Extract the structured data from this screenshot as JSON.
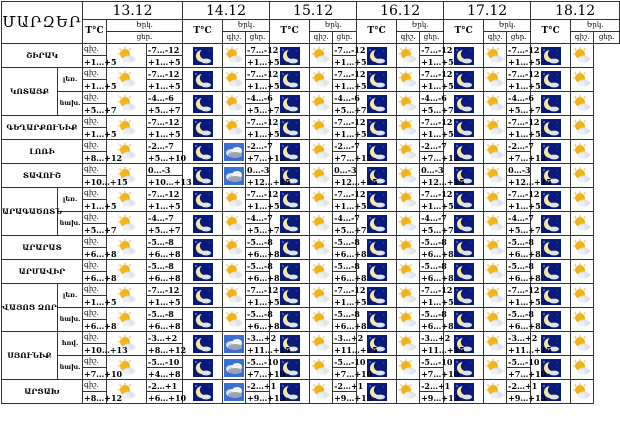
{
  "header": {
    "title": "ՄԱՐԶԵՐ",
    "temp_label": "T°C",
    "sky_label_top": "Երկ.",
    "sky_label_bot": "ցեր.",
    "night_label": "գիշ.",
    "day_label": "ցեր.",
    "dates": [
      "13.12",
      "14.12",
      "15.12",
      "16.12",
      "17.12",
      "18.12"
    ]
  },
  "rows": [
    {
      "region": "ՇԻՐԱԿ",
      "sub": "",
      "first_row": true,
      "span": 1,
      "temps": [
        [
          "",
          "+1…+5"
        ],
        [
          "-7…-12",
          "+1…+5"
        ],
        [
          "-7…-12",
          "+1…+5"
        ],
        [
          "-7…-12",
          "+1…+5"
        ],
        [
          "-7…-12",
          "+1…+5"
        ],
        [
          "-7…-12",
          "+1…+5"
        ]
      ],
      "icons": [
        [
          "",
          "partly-cloudy-icon"
        ],
        [
          "moon-icon",
          "partly-cloudy-icon"
        ],
        [
          "moon-icon",
          "partly-cloudy-icon"
        ],
        [
          "moon-icon",
          "partly-cloudy-icon"
        ],
        [
          "moon-icon",
          "partly-cloudy-icon"
        ],
        [
          "moon-icon",
          "partly-cloudy-icon"
        ]
      ]
    },
    {
      "region": "ԿՈՏԱՅՔ",
      "sub": "լեռ.",
      "first_row": true,
      "span": 2,
      "temps": [
        [
          "",
          "+1…+5"
        ],
        [
          "-7…-12",
          "+1…+5"
        ],
        [
          "-7…-12",
          "+1…+5"
        ],
        [
          "-7…-12",
          "+1…+5"
        ],
        [
          "-7…-12",
          "+1…+5"
        ],
        [
          "-7…-12",
          "+1…+5"
        ]
      ],
      "icons": [
        [
          "",
          "partly-cloudy-icon"
        ],
        [
          "moon-icon",
          "partly-cloudy-icon"
        ],
        [
          "moon-icon",
          "partly-cloudy-icon"
        ],
        [
          "moon-icon",
          "partly-cloudy-icon"
        ],
        [
          "moon-icon",
          "partly-cloudy-icon"
        ],
        [
          "moon-icon",
          "partly-cloudy-icon"
        ]
      ]
    },
    {
      "region": "",
      "sub": "նախ.",
      "first_row": false,
      "span": 0,
      "temps": [
        [
          "",
          "+5…+7"
        ],
        [
          "-4…-6",
          "+5…+7"
        ],
        [
          "-4…-6",
          "+5…+7"
        ],
        [
          "-4…-6",
          "+5…+7"
        ],
        [
          "-4…-6",
          "+5…+7"
        ],
        [
          "-4…-6",
          "+5…+7"
        ]
      ],
      "icons": [
        [
          "",
          "partly-cloudy-icon"
        ],
        [
          "moon-icon",
          "partly-cloudy-icon"
        ],
        [
          "moon-icon",
          "partly-cloudy-icon"
        ],
        [
          "moon-icon",
          "partly-cloudy-icon"
        ],
        [
          "moon-icon",
          "partly-cloudy-icon"
        ],
        [
          "moon-icon",
          "partly-cloudy-icon"
        ]
      ]
    },
    {
      "region": "ԳԵՂԱՐՔՈՒՆԻՔ",
      "sub": "",
      "first_row": true,
      "span": 1,
      "temps": [
        [
          "",
          "+1…+5"
        ],
        [
          "-7…-12",
          "+1…+5"
        ],
        [
          "-7…-12",
          "+1…+5"
        ],
        [
          "-7…-12",
          "+1…+5"
        ],
        [
          "-7…-12",
          "+1…+5"
        ],
        [
          "-7…-12",
          "+1…+5"
        ]
      ],
      "icons": [
        [
          "",
          "partly-cloudy-icon"
        ],
        [
          "moon-icon",
          "partly-cloudy-icon"
        ],
        [
          "moon-icon",
          "partly-cloudy-icon"
        ],
        [
          "moon-icon",
          "partly-cloudy-icon"
        ],
        [
          "moon-icon",
          "partly-cloudy-icon"
        ],
        [
          "moon-icon",
          "partly-cloudy-icon"
        ]
      ]
    },
    {
      "region": "ԼՈՌԻ",
      "sub": "",
      "first_row": true,
      "span": 1,
      "temps": [
        [
          "",
          "+8…+12"
        ],
        [
          "-2…-7",
          "+5…+10"
        ],
        [
          "-2…-7",
          "+7…+12"
        ],
        [
          "-2…-7",
          "+7…+12"
        ],
        [
          "-2…-7",
          "+7…+12"
        ],
        [
          "-2…-7",
          "+7…+12"
        ]
      ],
      "icons": [
        [
          "",
          "partly-cloudy-icon"
        ],
        [
          "moon-icon",
          "cloudy-icon"
        ],
        [
          "moon-icon",
          "partly-cloudy-icon"
        ],
        [
          "moon-icon",
          "partly-cloudy-icon"
        ],
        [
          "moon-icon",
          "partly-cloudy-icon"
        ],
        [
          "moon-icon",
          "partly-cloudy-icon"
        ]
      ]
    },
    {
      "region": "ՏԱՎՈՒՇ",
      "sub": "",
      "first_row": true,
      "span": 1,
      "temps": [
        [
          "",
          "+10…+15"
        ],
        [
          "0…-3",
          "+10…+13"
        ],
        [
          "0…-3",
          "+12…+15"
        ],
        [
          "0…-3",
          "+12…+15"
        ],
        [
          "0…-3",
          "+12…+15"
        ],
        [
          "0…-3",
          "+12…+15"
        ]
      ],
      "icons": [
        [
          "",
          "partly-cloudy-icon"
        ],
        [
          "moon-icon",
          "cloudy-icon"
        ],
        [
          "moon-icon",
          "partly-cloudy-icon"
        ],
        [
          "moon-icon",
          "partly-cloudy-icon"
        ],
        [
          "moon-icon",
          "partly-cloudy-icon"
        ],
        [
          "moon-icon",
          "partly-cloudy-icon"
        ]
      ]
    },
    {
      "region": "ԱՐԱԳԱԾՈՏՆ",
      "sub": "լեռ.",
      "first_row": true,
      "span": 2,
      "temps": [
        [
          "",
          "+1…+5"
        ],
        [
          "-7…-12",
          "+1…+5"
        ],
        [
          "-7…-12",
          "+1…+5"
        ],
        [
          "-7…-12",
          "+1…+5"
        ],
        [
          "-7…-12",
          "+1…+5"
        ],
        [
          "-7…-12",
          "+1…+5"
        ]
      ],
      "icons": [
        [
          "",
          "partly-cloudy-icon"
        ],
        [
          "moon-icon",
          "partly-cloudy-icon"
        ],
        [
          "moon-icon",
          "partly-cloudy-icon"
        ],
        [
          "moon-icon",
          "partly-cloudy-icon"
        ],
        [
          "moon-icon",
          "partly-cloudy-icon"
        ],
        [
          "moon-icon",
          "partly-cloudy-icon"
        ]
      ]
    },
    {
      "region": "",
      "sub": "նախ.",
      "first_row": false,
      "span": 0,
      "temps": [
        [
          "",
          "+5…+7"
        ],
        [
          "-4…-7",
          "+5…+7"
        ],
        [
          "-4…-7",
          "+5…+7"
        ],
        [
          "-4…-7",
          "+5…+7"
        ],
        [
          "-4…-7",
          "+5…+7"
        ],
        [
          "-4…-7",
          "+5…+7"
        ]
      ],
      "icons": [
        [
          "",
          "partly-cloudy-icon"
        ],
        [
          "moon-icon",
          "partly-cloudy-icon"
        ],
        [
          "moon-icon",
          "partly-cloudy-icon"
        ],
        [
          "moon-icon",
          "partly-cloudy-icon"
        ],
        [
          "moon-icon",
          "partly-cloudy-icon"
        ],
        [
          "moon-icon",
          "partly-cloudy-icon"
        ]
      ]
    },
    {
      "region": "ԱՐԱՐԱՏ",
      "sub": "",
      "first_row": true,
      "span": 1,
      "temps": [
        [
          "",
          "+6…+8"
        ],
        [
          "-5…-8",
          "+6…+8"
        ],
        [
          "-5…-8",
          "+6…+8"
        ],
        [
          "-5…-8",
          "+6…+8"
        ],
        [
          "-5…-8",
          "+6…+8"
        ],
        [
          "-5…-8",
          "+6…+8"
        ]
      ],
      "icons": [
        [
          "",
          "partly-cloudy-icon"
        ],
        [
          "moon-icon",
          "partly-cloudy-icon"
        ],
        [
          "moon-icon",
          "partly-cloudy-icon"
        ],
        [
          "moon-icon",
          "partly-cloudy-icon"
        ],
        [
          "moon-icon",
          "partly-cloudy-icon"
        ],
        [
          "moon-icon",
          "partly-cloudy-icon"
        ]
      ]
    },
    {
      "region": "ԱՐՄԱՎԻՐ",
      "sub": "",
      "first_row": true,
      "span": 1,
      "temps": [
        [
          "",
          "+6…+8"
        ],
        [
          "-5…-8",
          "+6…+8"
        ],
        [
          "-5…-8",
          "+6…+8"
        ],
        [
          "-5…-8",
          "+6…+8"
        ],
        [
          "-5…-8",
          "+6…+8"
        ],
        [
          "-5…-8",
          "+6…+8"
        ]
      ],
      "icons": [
        [
          "",
          "partly-cloudy-icon"
        ],
        [
          "moon-icon",
          "partly-cloudy-icon"
        ],
        [
          "moon-icon",
          "partly-cloudy-icon"
        ],
        [
          "moon-icon",
          "partly-cloudy-icon"
        ],
        [
          "moon-icon",
          "partly-cloudy-icon"
        ],
        [
          "moon-icon",
          "partly-cloudy-icon"
        ]
      ]
    },
    {
      "region": "ՎԱՅՈՑ ՁՈՐ",
      "sub": "լեռ.",
      "first_row": true,
      "span": 2,
      "temps": [
        [
          "",
          "+1…+5"
        ],
        [
          "-7…-12",
          "+1…+5"
        ],
        [
          "-7…-12",
          "+1…+5"
        ],
        [
          "-7…-12",
          "+1…+5"
        ],
        [
          "-7…-12",
          "+1…+5"
        ],
        [
          "-7…-12",
          "+1…+5"
        ]
      ],
      "icons": [
        [
          "",
          "partly-cloudy-icon"
        ],
        [
          "moon-icon",
          "partly-cloudy-icon"
        ],
        [
          "moon-icon",
          "partly-cloudy-icon"
        ],
        [
          "moon-icon",
          "partly-cloudy-icon"
        ],
        [
          "moon-icon",
          "partly-cloudy-icon"
        ],
        [
          "moon-icon",
          "partly-cloudy-icon"
        ]
      ]
    },
    {
      "region": "",
      "sub": "նախ.",
      "first_row": false,
      "span": 0,
      "temps": [
        [
          "",
          "+6…+8"
        ],
        [
          "-5…-8",
          "+6…+8"
        ],
        [
          "-5…-8",
          "+6…+8"
        ],
        [
          "-5…-8",
          "+6…+8"
        ],
        [
          "-5…-8",
          "+6…+8"
        ],
        [
          "-5…-8",
          "+6…+8"
        ]
      ],
      "icons": [
        [
          "",
          "partly-cloudy-icon"
        ],
        [
          "moon-icon",
          "partly-cloudy-icon"
        ],
        [
          "moon-icon",
          "partly-cloudy-icon"
        ],
        [
          "moon-icon",
          "partly-cloudy-icon"
        ],
        [
          "moon-icon",
          "partly-cloudy-icon"
        ],
        [
          "moon-icon",
          "partly-cloudy-icon"
        ]
      ]
    },
    {
      "region": "ՍՅՈՒՆԻՔ",
      "sub": "հով.",
      "first_row": true,
      "span": 2,
      "temps": [
        [
          "",
          "+10…+13"
        ],
        [
          "-3…+2",
          "+8…+12"
        ],
        [
          "-3…+2",
          "+11…+15"
        ],
        [
          "-3…+2",
          "+11…+15"
        ],
        [
          "-3…+2",
          "+11…+15"
        ],
        [
          "-3…+2",
          "+11…+15"
        ]
      ],
      "icons": [
        [
          "",
          "partly-cloudy-icon"
        ],
        [
          "moon-icon",
          "cloudy-icon"
        ],
        [
          "moon-icon",
          "partly-cloudy-icon"
        ],
        [
          "moon-icon",
          "partly-cloudy-icon"
        ],
        [
          "moon-icon",
          "partly-cloudy-icon"
        ],
        [
          "moon-icon",
          "partly-cloudy-icon"
        ]
      ]
    },
    {
      "region": "",
      "sub": "նախ.",
      "first_row": false,
      "span": 0,
      "temps": [
        [
          "",
          "+7…+10"
        ],
        [
          "-5…-10",
          "+4…+8"
        ],
        [
          "-5…-10",
          "+7…+10"
        ],
        [
          "-5…-10",
          "+7…+10"
        ],
        [
          "-5…-10",
          "+7…+10"
        ],
        [
          "-5…-10",
          "+7…+10"
        ]
      ],
      "icons": [
        [
          "",
          "partly-cloudy-icon"
        ],
        [
          "moon-icon",
          "cloudy-icon"
        ],
        [
          "moon-icon",
          "partly-cloudy-icon"
        ],
        [
          "moon-icon",
          "partly-cloudy-icon"
        ],
        [
          "moon-icon",
          "partly-cloudy-icon"
        ],
        [
          "moon-icon",
          "partly-cloudy-icon"
        ]
      ]
    },
    {
      "region": "ԱՐՑԱԽ",
      "sub": "",
      "first_row": true,
      "span": 1,
      "temps": [
        [
          "",
          "+8…+12"
        ],
        [
          "-2…+1",
          "+6…+10"
        ],
        [
          "-2…+1",
          "+9…+13"
        ],
        [
          "-2…+1",
          "+9…+13"
        ],
        [
          "-2…+1",
          "+9…+13"
        ],
        [
          "-2…+1",
          "+9…+13"
        ]
      ],
      "icons": [
        [
          "",
          "partly-cloudy-icon"
        ],
        [
          "moon-icon",
          "cloudy-icon"
        ],
        [
          "moon-icon",
          "partly-cloudy-icon"
        ],
        [
          "moon-icon",
          "partly-cloudy-icon"
        ],
        [
          "moon-icon",
          "partly-cloudy-icon"
        ],
        [
          "moon-icon",
          "partly-cloudy-icon"
        ]
      ]
    }
  ],
  "colors": {
    "night_bg": "#0a1a7a",
    "moon": "#f5e6a0",
    "sun": "#f2b21c",
    "cloud": "#dfe4ea",
    "cloud_dark": "#9aa4b2",
    "sky_bg": "#3b6fd0"
  }
}
